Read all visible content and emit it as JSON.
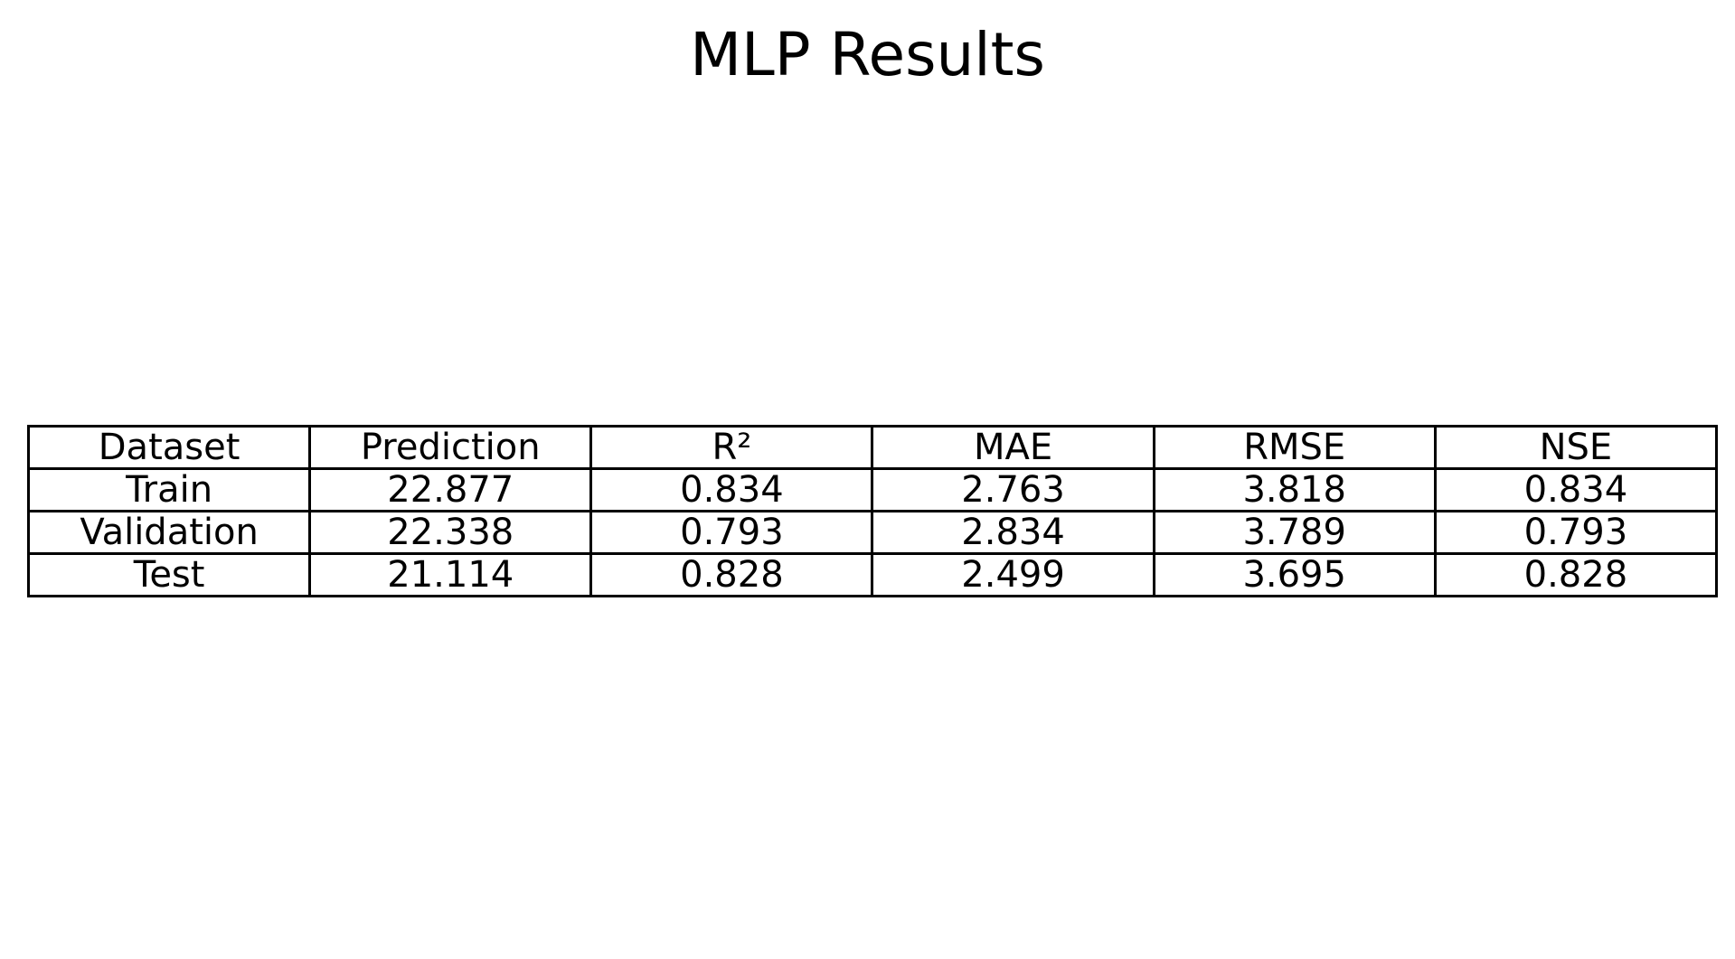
{
  "chart_data": {
    "type": "table",
    "title": "MLP Results",
    "columns": [
      "Dataset",
      "Prediction",
      "R²",
      "MAE",
      "RMSE",
      "NSE"
    ],
    "rows": [
      [
        "Train",
        "22.877",
        "0.834",
        "2.763",
        "3.818",
        "0.834"
      ],
      [
        "Validation",
        "22.338",
        "0.793",
        "2.834",
        "3.789",
        "0.793"
      ],
      [
        "Test",
        "21.114",
        "0.828",
        "2.499",
        "3.695",
        "0.828"
      ]
    ],
    "colors": {
      "text": "#000000",
      "border": "#000000",
      "background": "#ffffff"
    }
  }
}
